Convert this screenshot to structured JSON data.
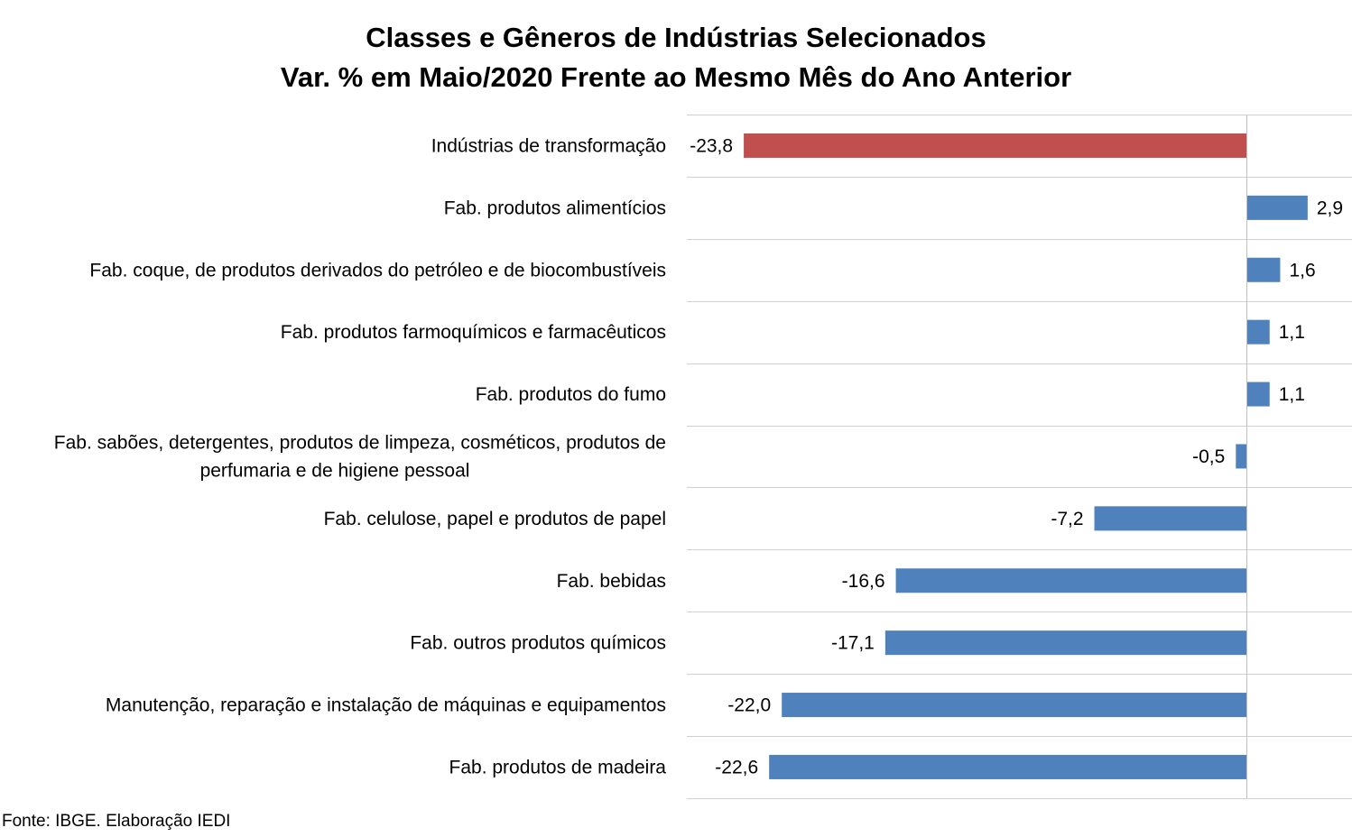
{
  "chart_data": {
    "type": "bar",
    "orientation": "horizontal",
    "title": [
      "Classes e Gêneros de Indústrias Selecionados",
      "Var. % em Maio/2020 Frente ao Mesmo Mês do Ano Anterior"
    ],
    "categories": [
      [
        "Indústrias de transformação"
      ],
      [
        "Fab. produtos alimentícios"
      ],
      [
        "Fab. coque, de produtos derivados do petróleo e de biocombustíveis"
      ],
      [
        "Fab. produtos farmoquímicos e farmacêuticos"
      ],
      [
        "Fab. produtos do fumo"
      ],
      [
        "Fab. sabões, detergentes, produtos de limpeza, cosméticos, produtos de",
        "perfumaria e de higiene pessoal"
      ],
      [
        "Fab. celulose, papel e produtos de papel"
      ],
      [
        "Fab. bebidas"
      ],
      [
        "Fab. outros produtos químicos"
      ],
      [
        "Manutenção, reparação e instalação de máquinas e equipamentos"
      ],
      [
        "Fab. produtos de madeira"
      ]
    ],
    "values": [
      -23.8,
      2.9,
      1.6,
      1.1,
      1.1,
      -0.5,
      -7.2,
      -16.6,
      -17.1,
      -22.0,
      -22.6
    ],
    "value_labels": [
      "-23,8",
      "2,9",
      "1,6",
      "1,1",
      "1,1",
      "-0,5",
      "-7,2",
      "-16,6",
      "-17,1",
      "-22,0",
      "-22,6"
    ],
    "colors": [
      "#C0504D",
      "#4F81BD",
      "#4F81BD",
      "#4F81BD",
      "#4F81BD",
      "#4F81BD",
      "#4F81BD",
      "#4F81BD",
      "#4F81BD",
      "#4F81BD",
      "#4F81BD"
    ],
    "xlim": [
      -26.5,
      5
    ],
    "grid": true,
    "xlabel": "",
    "ylabel": ""
  },
  "source": "Fonte: IBGE. Elaboração IEDI"
}
